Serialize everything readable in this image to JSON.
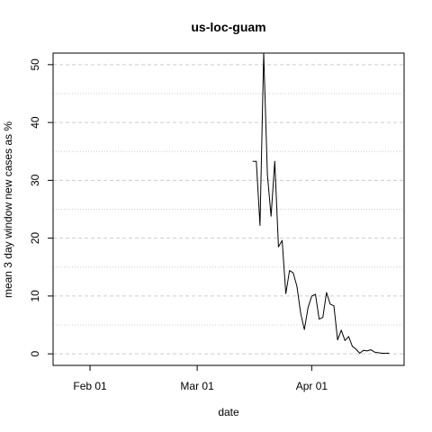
{
  "chart_data": {
    "type": "line",
    "title": "us-loc-guam",
    "xlabel": "date",
    "ylabel": "mean  3  day window new cases as %",
    "xticks": [
      "Feb 01",
      "Mar 01",
      "Apr 01"
    ],
    "yticks": [
      "0",
      "10",
      "20",
      "30",
      "40",
      "50"
    ],
    "xlim": [
      "2020-01-22",
      "2020-04-26"
    ],
    "ylim": [
      -2,
      52
    ],
    "grid": true,
    "series": [
      {
        "x": [
          "2020-03-16",
          "2020-03-17",
          "2020-03-18",
          "2020-03-19",
          "2020-03-20",
          "2020-03-21",
          "2020-03-22",
          "2020-03-23",
          "2020-03-24",
          "2020-03-25",
          "2020-03-26",
          "2020-03-27",
          "2020-03-28",
          "2020-03-29",
          "2020-03-30",
          "2020-03-31",
          "2020-04-01",
          "2020-04-02",
          "2020-04-03",
          "2020-04-04",
          "2020-04-05",
          "2020-04-06",
          "2020-04-07",
          "2020-04-08",
          "2020-04-09",
          "2020-04-10",
          "2020-04-11",
          "2020-04-12",
          "2020-04-13",
          "2020-04-14",
          "2020-04-15",
          "2020-04-16",
          "2020-04-17",
          "2020-04-18",
          "2020-04-19",
          "2020-04-20",
          "2020-04-21",
          "2020-04-22"
        ],
        "y": [
          33.3,
          33.3,
          22.2,
          52.0,
          31.0,
          23.8,
          33.3,
          18.5,
          19.6,
          10.4,
          14.4,
          14.0,
          11.7,
          7.0,
          4.2,
          8.0,
          10.0,
          10.3,
          6.0,
          6.3,
          10.6,
          8.6,
          8.3,
          2.4,
          4.1,
          2.3,
          3.0,
          1.3,
          0.8,
          0.1,
          0.6,
          0.5,
          0.7,
          0.3,
          0.2,
          0.1,
          0.1,
          0.1
        ]
      }
    ]
  }
}
